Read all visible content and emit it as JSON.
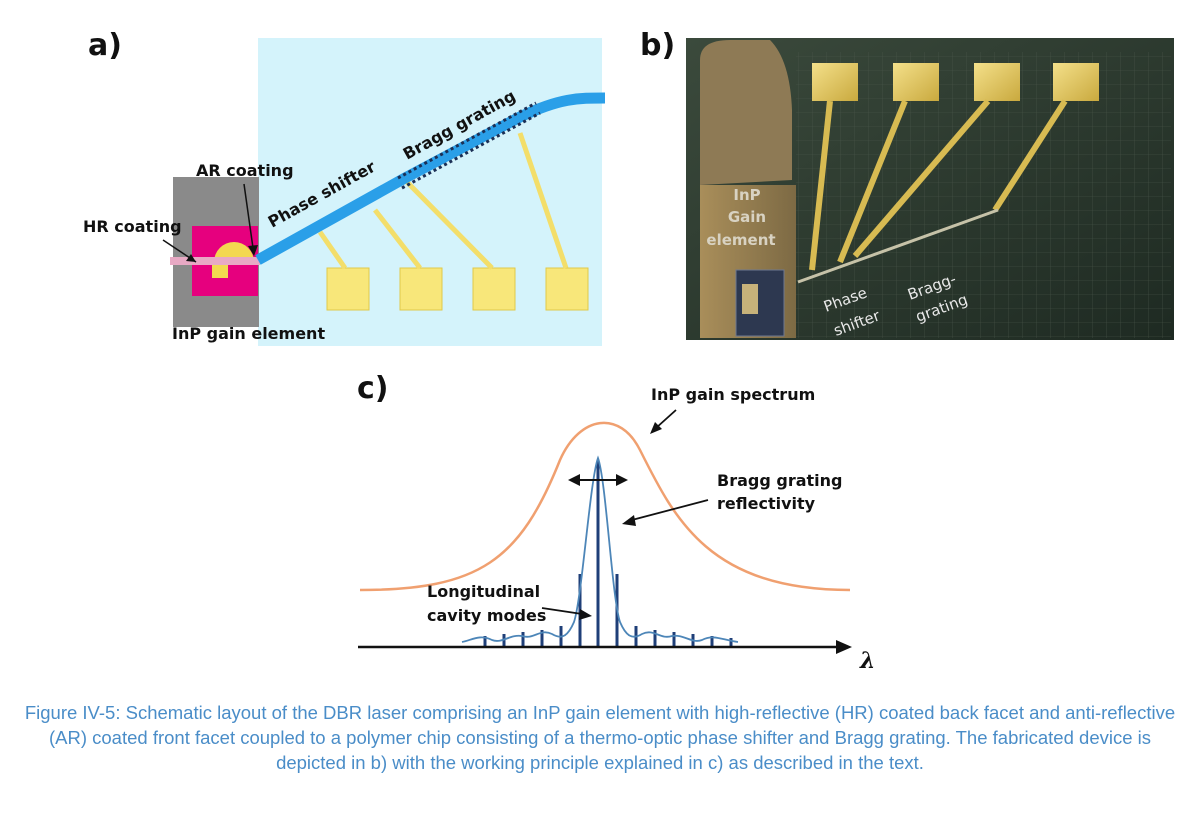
{
  "panel_a": {
    "letter": "a)",
    "labels": {
      "hr_coating": "HR coating",
      "ar_coating": "AR coating",
      "phase_shifter": "Phase shifter",
      "bragg_grating": "Bragg grating",
      "inp_gain_element": "InP gain element"
    },
    "colors": {
      "chip": "#d4f3fb",
      "waveguide": "#2a9fe8",
      "gain_chip": "#e6007e",
      "gain_base": "#8a8a8a",
      "electrode": "#f8e77a"
    }
  },
  "panel_b": {
    "letter": "b)",
    "labels": {
      "gain_line1": "InP",
      "gain_line2": "Gain",
      "gain_line3": "element",
      "phase_line1": "Phase",
      "phase_line2": "shifter",
      "bragg_line1": "Bragg-",
      "bragg_line2": "grating"
    }
  },
  "panel_c": {
    "letter": "c)",
    "labels": {
      "gain_spectrum": "InP gain spectrum",
      "bragg_line1": "Bragg grating",
      "bragg_line2": "reflectivity",
      "modes_line1": "Longitudinal",
      "modes_line2": "cavity modes",
      "axis": "λ"
    },
    "colors": {
      "gain_curve": "#f0a070",
      "reflectivity_curve": "#4d86b8",
      "modes": "#1f3f78"
    }
  },
  "caption": "Figure IV-5: Schematic layout of the DBR laser comprising an InP gain element with high-reflective (HR) coated back facet and anti-reflective (AR) coated front facet coupled to a polymer chip consisting of a thermo-optic phase shifter and Bragg grating. The fabricated device is depicted in b) with the working principle explained in c) as described in the text."
}
